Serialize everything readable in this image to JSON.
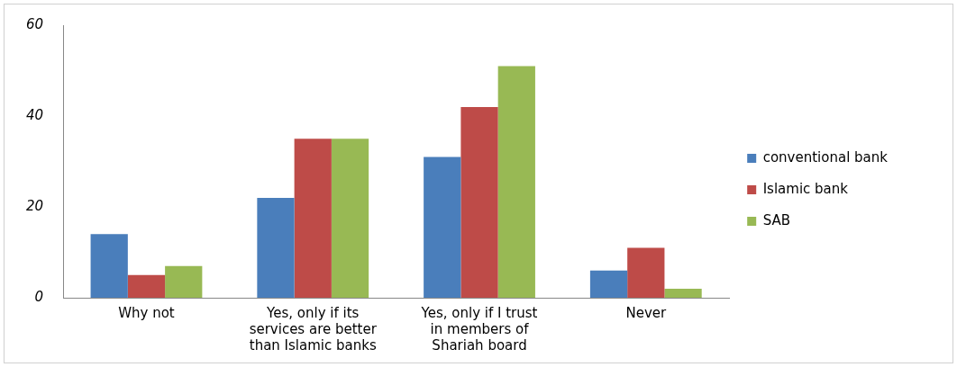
{
  "chart_data": {
    "type": "bar",
    "categories": [
      "Why not",
      "Yes, only if its services are better than Islamic banks",
      "Yes, only if I trust in members of Shariah board",
      "Never"
    ],
    "series": [
      {
        "name": "conventional bank",
        "color": "#4a7ebb",
        "values": [
          14,
          22,
          31,
          6
        ]
      },
      {
        "name": "Islamic bank",
        "color": "#be4b48",
        "values": [
          5,
          35,
          42,
          11
        ]
      },
      {
        "name": "SAB",
        "color": "#98b954",
        "values": [
          7,
          35,
          51,
          2
        ]
      }
    ],
    "ylim": [
      0,
      60
    ],
    "yticks": [
      0,
      20,
      40,
      60
    ],
    "grid": false,
    "legend": "right"
  }
}
